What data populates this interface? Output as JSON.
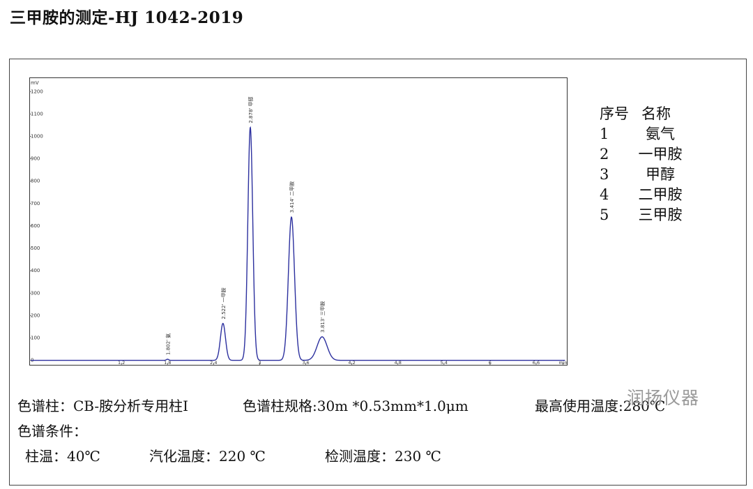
{
  "page_title": "三甲胺的测定-HJ 1042-2019",
  "legend": {
    "header_no": "序号",
    "header_name": "名称",
    "items": [
      {
        "no": "1",
        "name": "氨气"
      },
      {
        "no": "2",
        "name": "一甲胺"
      },
      {
        "no": "3",
        "name": "甲醇"
      },
      {
        "no": "4",
        "name": "二甲胺"
      },
      {
        "no": "5",
        "name": "三甲胺"
      }
    ]
  },
  "conditions": {
    "column": "色谱柱：CB-胺分析专用柱I",
    "spec": "色谱柱规格:30m *0.53mm*1.0μm",
    "max_temp": "最高使用温度:280℃",
    "label": "色谱条件：",
    "column_temp": "柱温：40℃",
    "vapor_temp": "汽化温度：220 ℃",
    "detect_temp": "检测温度：230 ℃"
  },
  "watermark": "润扬仪器",
  "chart_data": {
    "type": "line",
    "title": "",
    "ylabel": "mV",
    "xlabel": "",
    "xlim": [
      0,
      7.0
    ],
    "ylim": [
      -20,
      1260
    ],
    "x_ticks": [
      "1.2",
      "1.8",
      "2.4",
      "3",
      "3.6",
      "4.2",
      "4.8",
      "5.4",
      "6",
      "6.6",
      "min"
    ],
    "y_ticks": [
      "0",
      "100",
      "200",
      "300",
      "400",
      "500",
      "600",
      "700",
      "800",
      "900",
      "1000",
      "1100",
      "1200"
    ],
    "peaks": [
      {
        "rt": 1.8,
        "height": 5,
        "label": "1.802' 氨"
      },
      {
        "rt": 2.522,
        "height": 165,
        "label": "2.522' 一甲胺"
      },
      {
        "rt": 2.878,
        "height": 1040,
        "label": "2.878' 甲醇"
      },
      {
        "rt": 3.414,
        "height": 640,
        "label": "3.414' 二甲胺"
      },
      {
        "rt": 3.813,
        "height": 105,
        "label": "3.813' 三甲胺"
      }
    ],
    "series_color": "#2b2f9e"
  }
}
